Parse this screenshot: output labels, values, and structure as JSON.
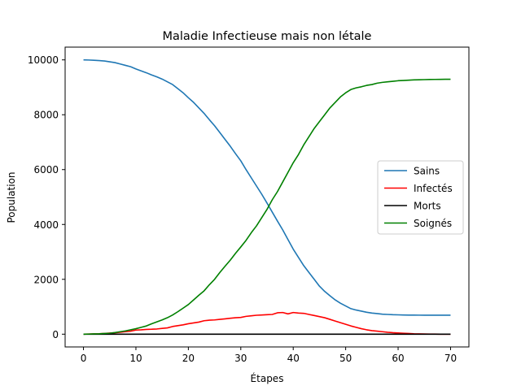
{
  "chart_data": {
    "type": "line",
    "title": "Maladie Infectieuse mais non létale",
    "xlabel": "Étapes",
    "ylabel": "Population",
    "xlim": [
      -3.5,
      73.5
    ],
    "ylim": [
      -465,
      10465
    ],
    "xticks": [
      0,
      10,
      20,
      30,
      40,
      50,
      60,
      70
    ],
    "yticks": [
      0,
      2000,
      4000,
      6000,
      8000,
      10000
    ],
    "grid": false,
    "legend_position": "center-right",
    "x": [
      0,
      1,
      2,
      3,
      4,
      5,
      6,
      7,
      8,
      9,
      10,
      11,
      12,
      13,
      14,
      15,
      16,
      17,
      18,
      19,
      20,
      21,
      22,
      23,
      24,
      25,
      26,
      27,
      28,
      29,
      30,
      31,
      32,
      33,
      34,
      35,
      36,
      37,
      38,
      39,
      40,
      41,
      42,
      43,
      44,
      45,
      46,
      47,
      48,
      49,
      50,
      51,
      52,
      53,
      54,
      55,
      56,
      57,
      58,
      59,
      60,
      61,
      62,
      63,
      64,
      65,
      66,
      67,
      68,
      69,
      70
    ],
    "series": [
      {
        "name": "Sains",
        "color": "#1f77b4",
        "values": [
          10000,
          9995,
          9985,
          9975,
          9960,
          9930,
          9900,
          9850,
          9800,
          9750,
          9670,
          9600,
          9530,
          9450,
          9380,
          9300,
          9200,
          9100,
          8950,
          8800,
          8620,
          8450,
          8250,
          8050,
          7820,
          7600,
          7350,
          7100,
          6850,
          6580,
          6320,
          6000,
          5700,
          5400,
          5100,
          4780,
          4450,
          4120,
          3800,
          3450,
          3100,
          2800,
          2500,
          2250,
          2000,
          1750,
          1560,
          1400,
          1250,
          1130,
          1030,
          930,
          880,
          840,
          800,
          770,
          750,
          730,
          720,
          710,
          705,
          700,
          697,
          695,
          694,
          693,
          693,
          693,
          693,
          693,
          693
        ]
      },
      {
        "name": "Infectés",
        "color": "#ff0000",
        "values": [
          0,
          5,
          10,
          15,
          25,
          40,
          50,
          70,
          90,
          110,
          150,
          160,
          175,
          180,
          190,
          210,
          230,
          280,
          310,
          340,
          380,
          410,
          440,
          490,
          510,
          520,
          540,
          560,
          580,
          600,
          610,
          650,
          670,
          690,
          700,
          710,
          720,
          780,
          790,
          740,
          790,
          770,
          760,
          720,
          680,
          640,
          600,
          540,
          480,
          420,
          360,
          300,
          250,
          200,
          160,
          130,
          110,
          90,
          70,
          55,
          45,
          35,
          25,
          15,
          10,
          6,
          4,
          2,
          1,
          0,
          0
        ]
      },
      {
        "name": "Morts",
        "color": "#000000",
        "values": [
          0,
          0,
          0,
          0,
          0,
          0,
          0,
          0,
          0,
          0,
          0,
          0,
          0,
          0,
          0,
          0,
          0,
          0,
          0,
          0,
          0,
          0,
          0,
          0,
          0,
          0,
          0,
          0,
          0,
          0,
          0,
          0,
          0,
          0,
          0,
          0,
          0,
          0,
          0,
          0,
          0,
          0,
          0,
          0,
          0,
          0,
          0,
          0,
          0,
          0,
          0,
          0,
          0,
          0,
          0,
          0,
          0,
          0,
          0,
          0,
          0,
          0,
          0,
          0,
          0,
          0,
          0,
          0,
          0,
          0,
          0
        ]
      },
      {
        "name": "Soignés",
        "color": "#008000",
        "values": [
          0,
          5,
          10,
          15,
          25,
          35,
          60,
          90,
          120,
          160,
          200,
          250,
          300,
          380,
          450,
          520,
          600,
          700,
          820,
          950,
          1080,
          1250,
          1420,
          1580,
          1800,
          2000,
          2250,
          2480,
          2700,
          2950,
          3180,
          3420,
          3700,
          3950,
          4250,
          4550,
          4900,
          5200,
          5550,
          5900,
          6250,
          6550,
          6900,
          7200,
          7500,
          7750,
          8000,
          8250,
          8450,
          8650,
          8800,
          8920,
          8980,
          9020,
          9070,
          9100,
          9150,
          9180,
          9200,
          9220,
          9240,
          9250,
          9260,
          9270,
          9275,
          9280,
          9285,
          9288,
          9290,
          9292,
          9293
        ]
      }
    ]
  }
}
